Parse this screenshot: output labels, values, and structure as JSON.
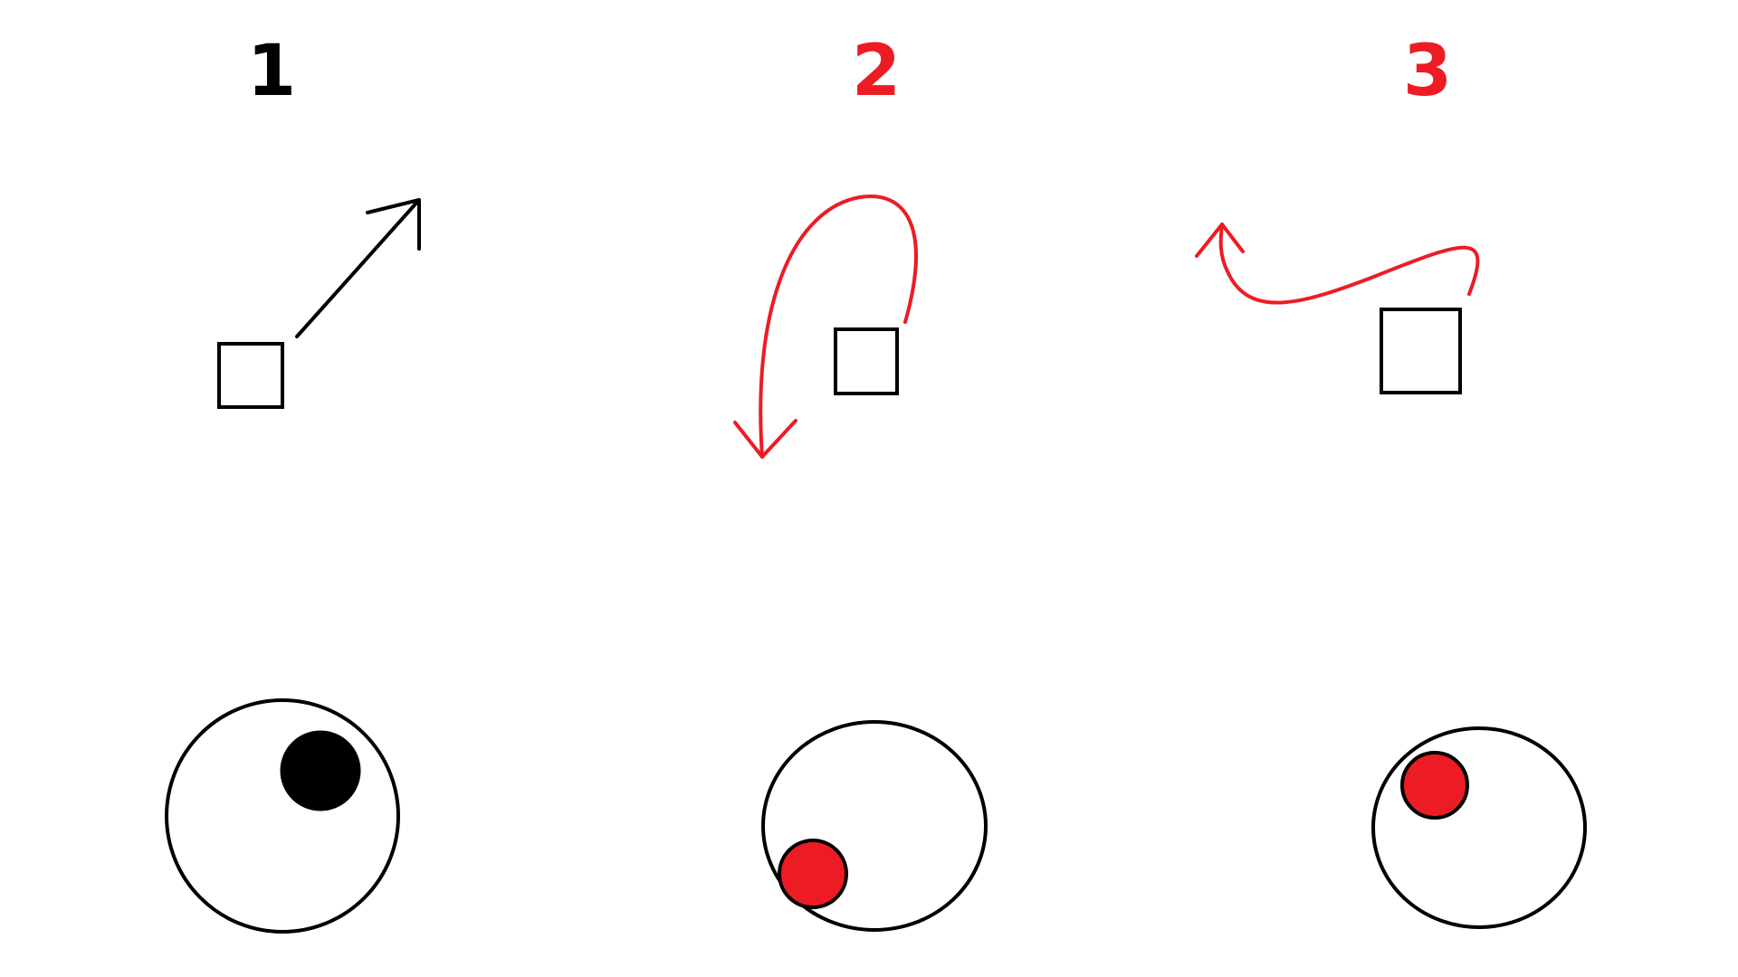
{
  "colors": {
    "background": "#ffffff",
    "black": "#000000",
    "red": "#ed1c24"
  },
  "panels": [
    {
      "number": "1",
      "number_color": "#000000",
      "arrow_color": "#000000",
      "dot_color": "#000000",
      "arrow_icon": "straight-arrow-up-right"
    },
    {
      "number": "2",
      "number_color": "#ed1c24",
      "arrow_color": "#ed1c24",
      "dot_color": "#ed1c24",
      "arrow_icon": "curved-arrow-loop-down"
    },
    {
      "number": "3",
      "number_color": "#ed1c24",
      "arrow_color": "#ed1c24",
      "dot_color": "#ed1c24",
      "arrow_icon": "wavy-arrow-left"
    }
  ]
}
